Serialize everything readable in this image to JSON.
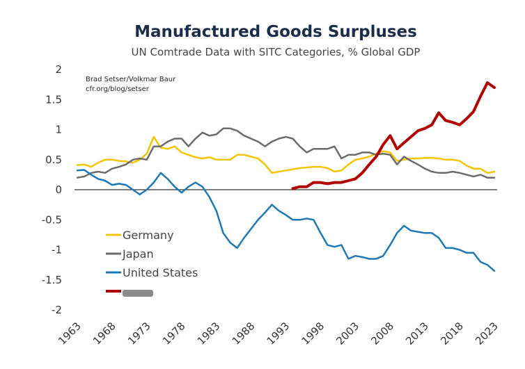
{
  "chart_data": {
    "type": "line",
    "title": "Manufactured Goods Surpluses",
    "subtitle": "UN Comtrade Data with SITC Categories, % Global GDP",
    "credit": [
      "Brad Setser/Volkmar Baur",
      "cfr.org/blog/setser"
    ],
    "xlabel": "",
    "ylabel": "",
    "xlim": [
      1963,
      2023
    ],
    "ylim": [
      -2,
      2
    ],
    "yticks": [
      2,
      1.5,
      1,
      0.5,
      0,
      -0.5,
      -1,
      -1.5,
      -2
    ],
    "ytick_labels": [
      "2",
      "1.5",
      "1",
      "0.5",
      "0",
      "-0.5",
      "-1",
      "-1.5",
      "-2"
    ],
    "xticks": [
      1963,
      1968,
      1973,
      1978,
      1983,
      1988,
      1993,
      1998,
      2003,
      2008,
      2013,
      2018,
      2023
    ],
    "xtick_labels": [
      "1963",
      "1968",
      "1973",
      "1978",
      "1983",
      "1988",
      "1993",
      "1998",
      "2003",
      "2008",
      "2013",
      "2018",
      "2023"
    ],
    "grid": false,
    "legend_position": "bottom-left",
    "series": [
      {
        "name": "Germany",
        "color": "#F5C400",
        "x": [
          1963,
          1964,
          1965,
          1966,
          1967,
          1968,
          1969,
          1970,
          1971,
          1972,
          1973,
          1974,
          1975,
          1976,
          1977,
          1978,
          1979,
          1980,
          1981,
          1982,
          1983,
          1984,
          1985,
          1986,
          1987,
          1988,
          1989,
          1990,
          1991,
          1992,
          1993,
          1994,
          1995,
          1996,
          1997,
          1998,
          1999,
          2000,
          2001,
          2002,
          2003,
          2004,
          2005,
          2006,
          2007,
          2008,
          2009,
          2010,
          2011,
          2012,
          2013,
          2014,
          2015,
          2016,
          2017,
          2018,
          2019,
          2020,
          2021,
          2022,
          2023
        ],
        "y": [
          0.41,
          0.42,
          0.38,
          0.45,
          0.5,
          0.5,
          0.48,
          0.47,
          0.45,
          0.5,
          0.6,
          0.88,
          0.7,
          0.68,
          0.72,
          0.62,
          0.58,
          0.54,
          0.52,
          0.54,
          0.5,
          0.5,
          0.5,
          0.58,
          0.58,
          0.55,
          0.52,
          0.42,
          0.28,
          0.3,
          0.32,
          0.34,
          0.36,
          0.37,
          0.38,
          0.38,
          0.36,
          0.3,
          0.32,
          0.42,
          0.5,
          0.52,
          0.55,
          0.6,
          0.64,
          0.62,
          0.48,
          0.5,
          0.52,
          0.52,
          0.53,
          0.53,
          0.52,
          0.5,
          0.5,
          0.48,
          0.4,
          0.35,
          0.35,
          0.28,
          0.3
        ]
      },
      {
        "name": "Japan",
        "color": "#6b6b6b",
        "x": [
          1963,
          1964,
          1965,
          1966,
          1967,
          1968,
          1969,
          1970,
          1971,
          1972,
          1973,
          1974,
          1975,
          1976,
          1977,
          1978,
          1979,
          1980,
          1981,
          1982,
          1983,
          1984,
          1985,
          1986,
          1987,
          1988,
          1989,
          1990,
          1991,
          1992,
          1993,
          1994,
          1995,
          1996,
          1997,
          1998,
          1999,
          2000,
          2001,
          2002,
          2003,
          2004,
          2005,
          2006,
          2007,
          2008,
          2009,
          2010,
          2011,
          2012,
          2013,
          2014,
          2015,
          2016,
          2017,
          2018,
          2019,
          2020,
          2021,
          2022,
          2023
        ],
        "y": [
          0.2,
          0.22,
          0.28,
          0.3,
          0.28,
          0.35,
          0.38,
          0.42,
          0.5,
          0.52,
          0.5,
          0.72,
          0.72,
          0.8,
          0.85,
          0.85,
          0.72,
          0.85,
          0.95,
          0.9,
          0.92,
          1.02,
          1.02,
          0.98,
          0.9,
          0.85,
          0.8,
          0.72,
          0.8,
          0.85,
          0.88,
          0.85,
          0.72,
          0.62,
          0.68,
          0.68,
          0.68,
          0.72,
          0.52,
          0.58,
          0.58,
          0.62,
          0.62,
          0.58,
          0.6,
          0.58,
          0.42,
          0.55,
          0.48,
          0.42,
          0.35,
          0.3,
          0.28,
          0.28,
          0.3,
          0.28,
          0.25,
          0.22,
          0.25,
          0.2,
          0.2
        ]
      },
      {
        "name": "United States",
        "color": "#1f78b4",
        "x": [
          1963,
          1964,
          1965,
          1966,
          1967,
          1968,
          1969,
          1970,
          1971,
          1972,
          1973,
          1974,
          1975,
          1976,
          1977,
          1978,
          1979,
          1980,
          1981,
          1982,
          1983,
          1984,
          1985,
          1986,
          1987,
          1988,
          1989,
          1990,
          1991,
          1992,
          1993,
          1994,
          1995,
          1996,
          1997,
          1998,
          1999,
          2000,
          2001,
          2002,
          2003,
          2004,
          2005,
          2006,
          2007,
          2008,
          2009,
          2010,
          2011,
          2012,
          2013,
          2014,
          2015,
          2016,
          2017,
          2018,
          2019,
          2020,
          2021,
          2022,
          2023
        ],
        "y": [
          0.32,
          0.33,
          0.25,
          0.18,
          0.15,
          0.08,
          0.1,
          0.08,
          0.0,
          -0.08,
          0.0,
          0.12,
          0.28,
          0.18,
          0.05,
          -0.05,
          0.05,
          0.12,
          0.05,
          -0.12,
          -0.35,
          -0.72,
          -0.88,
          -0.97,
          -0.8,
          -0.65,
          -0.5,
          -0.38,
          -0.25,
          -0.35,
          -0.42,
          -0.5,
          -0.5,
          -0.48,
          -0.5,
          -0.72,
          -0.92,
          -0.95,
          -0.92,
          -1.15,
          -1.1,
          -1.12,
          -1.15,
          -1.15,
          -1.1,
          -0.92,
          -0.72,
          -0.6,
          -0.68,
          -0.7,
          -0.72,
          -0.72,
          -0.8,
          -0.97,
          -0.97,
          -1.0,
          -1.05,
          -1.05,
          -1.2,
          -1.25,
          -1.35
        ]
      },
      {
        "name": "",
        "color": "#b00000",
        "x": [
          1994,
          1995,
          1996,
          1997,
          1998,
          1999,
          2000,
          2001,
          2002,
          2003,
          2004,
          2005,
          2006,
          2007,
          2008,
          2009,
          2010,
          2011,
          2012,
          2013,
          2014,
          2015,
          2016,
          2017,
          2018,
          2019,
          2020,
          2021,
          2022,
          2023
        ],
        "y": [
          0.02,
          0.05,
          0.05,
          0.12,
          0.12,
          0.1,
          0.12,
          0.12,
          0.15,
          0.18,
          0.28,
          0.42,
          0.55,
          0.75,
          0.9,
          0.68,
          0.78,
          0.88,
          0.98,
          1.02,
          1.08,
          1.28,
          1.15,
          1.12,
          1.08,
          1.18,
          1.3,
          1.55,
          1.78,
          1.7
        ]
      }
    ]
  }
}
